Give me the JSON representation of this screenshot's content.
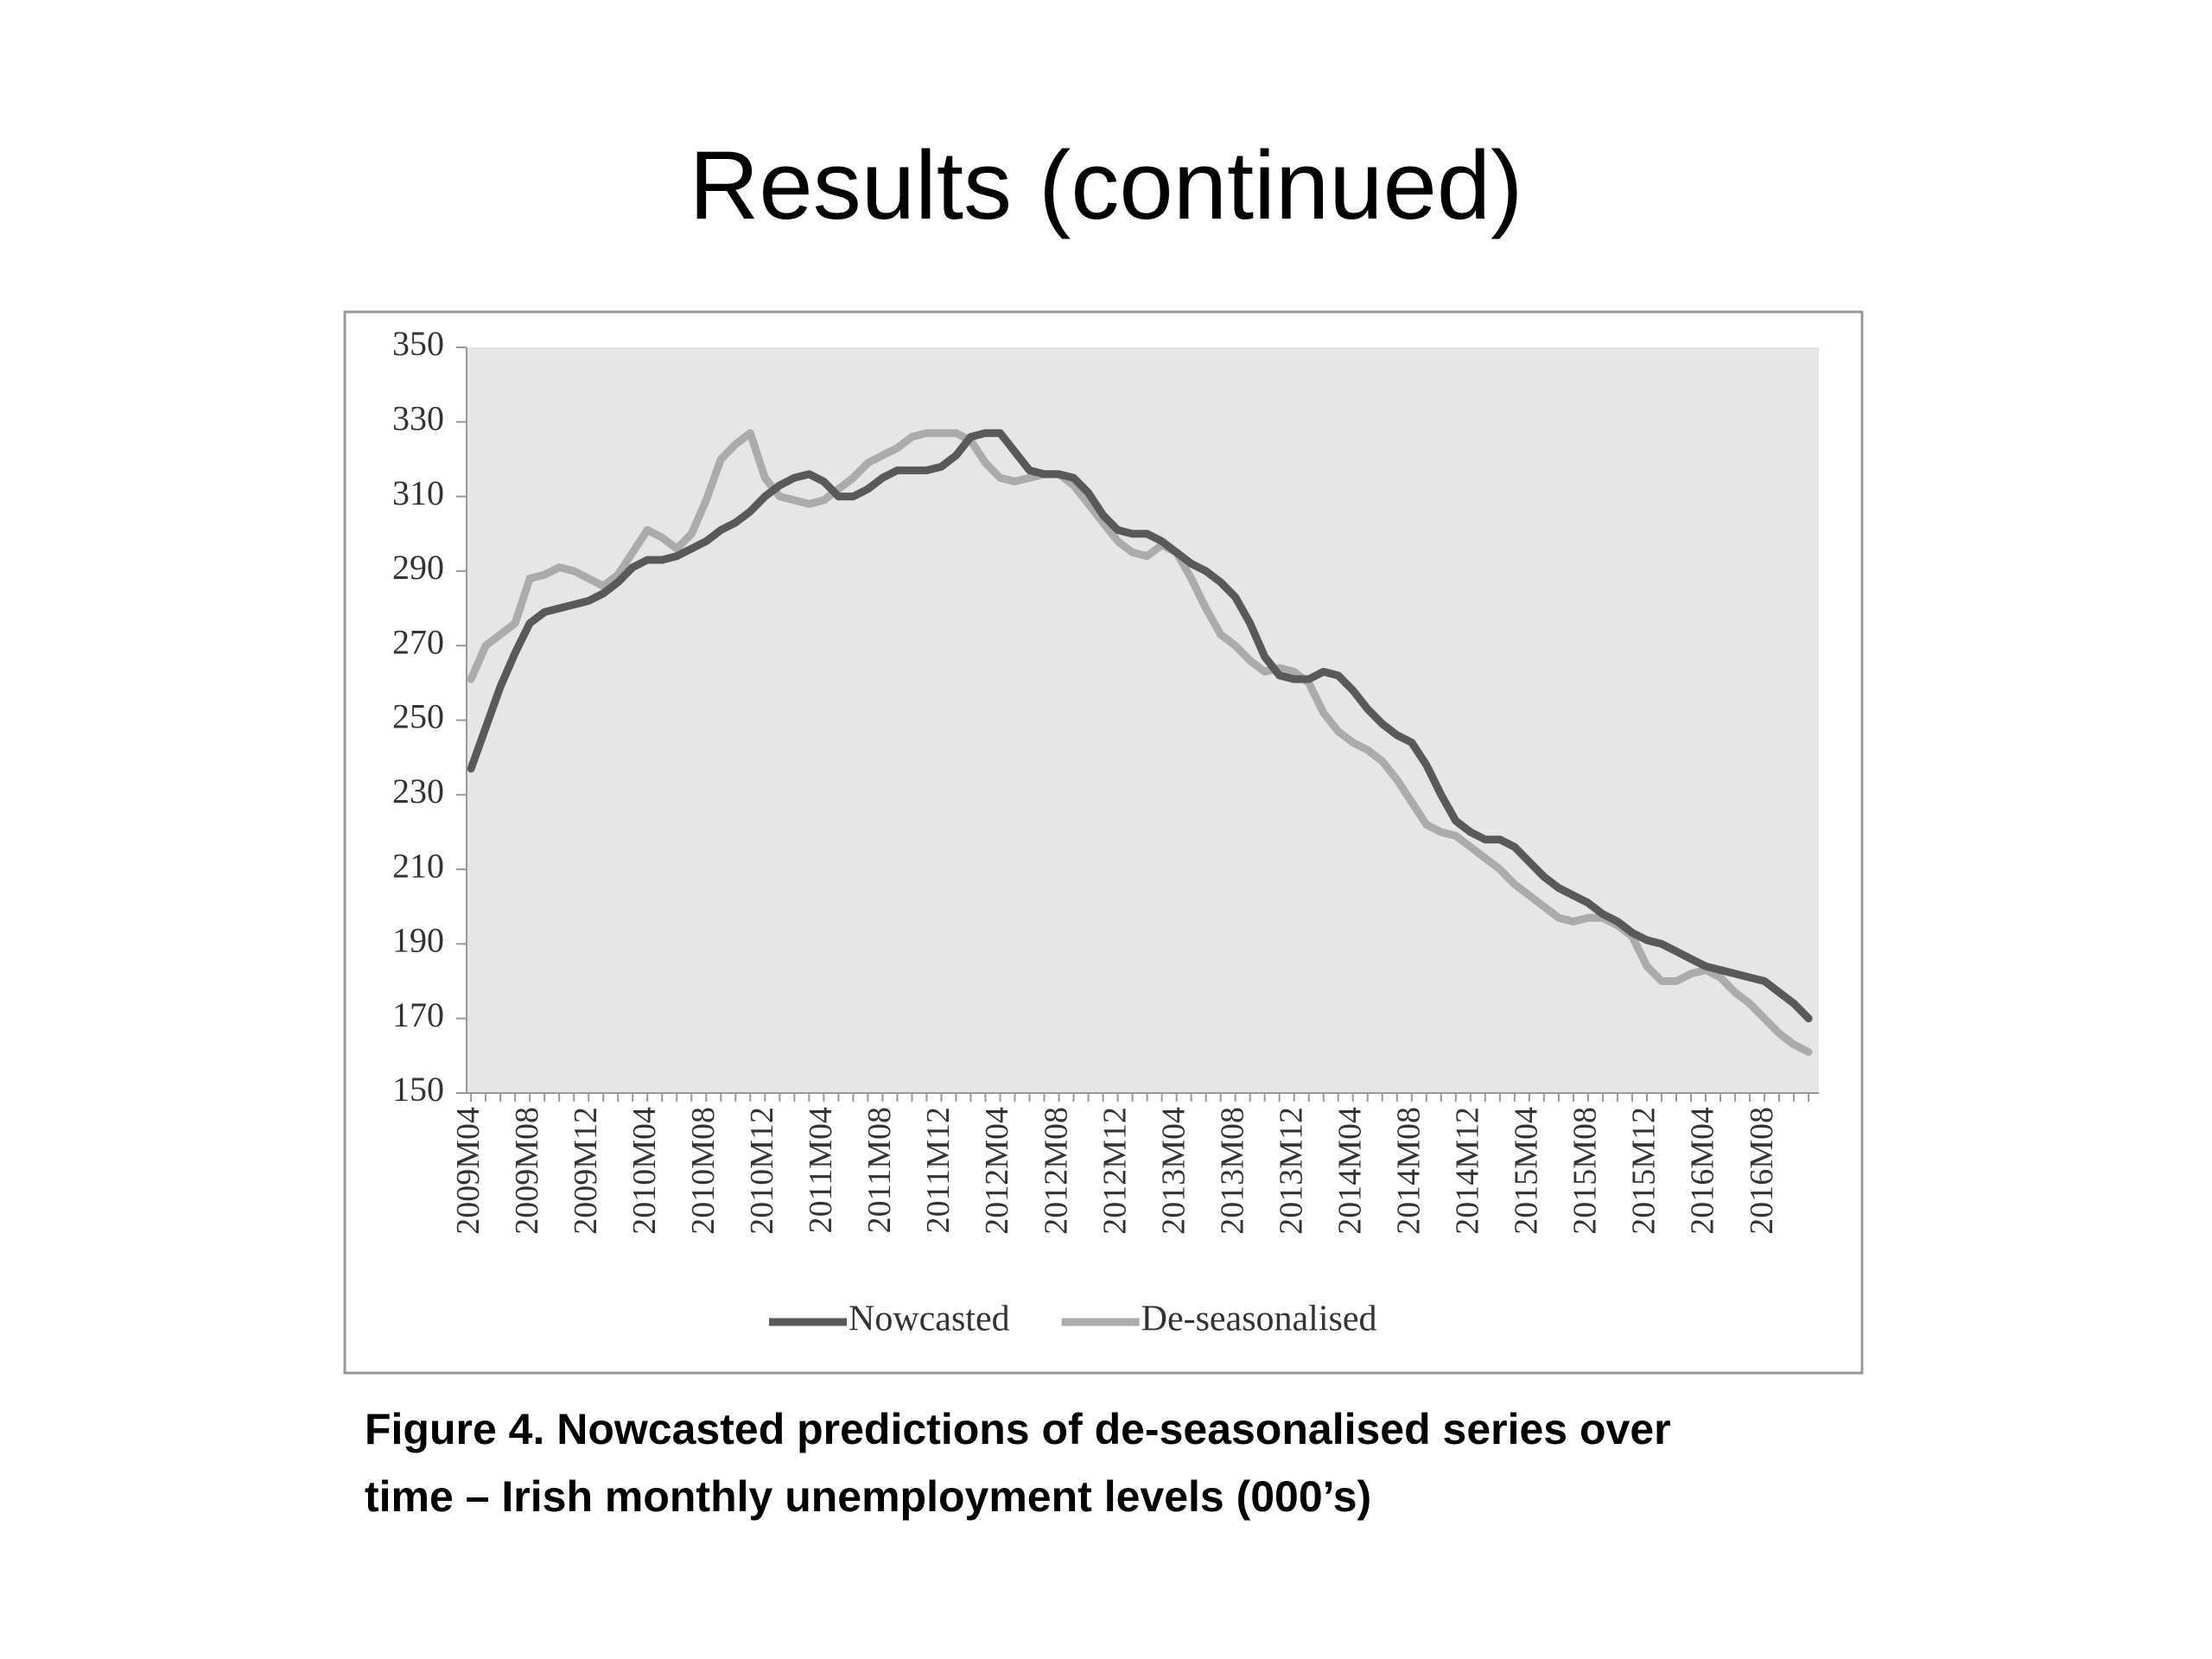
{
  "title": "Results (continued)",
  "caption": [
    "Figure 4. Nowcasted predictions of de-seasonalised series over",
    "time –  Irish monthly unemployment levels (000’s)"
  ],
  "chart_data": {
    "type": "line",
    "categories": [
      "2009M04",
      null,
      null,
      null,
      "2009M08",
      null,
      null,
      null,
      "2009M12",
      null,
      null,
      null,
      "2010M04",
      null,
      null,
      null,
      "2010M08",
      null,
      null,
      null,
      "2010M12",
      null,
      null,
      null,
      "2011M04",
      null,
      null,
      null,
      "2011M08",
      null,
      null,
      null,
      "2011M12",
      null,
      null,
      null,
      "2012M04",
      null,
      null,
      null,
      "2012M08",
      null,
      null,
      null,
      "2012M12",
      null,
      null,
      null,
      "2013M04",
      null,
      null,
      null,
      "2013M08",
      null,
      null,
      null,
      "2013M12",
      null,
      null,
      null,
      "2014M04",
      null,
      null,
      null,
      "2014M08",
      null,
      null,
      null,
      "2014M12",
      null,
      null,
      null,
      "2015M04",
      null,
      null,
      null,
      "2015M08",
      null,
      null,
      null,
      "2015M12",
      null,
      null,
      null,
      "2016M04",
      null,
      null,
      null,
      "2016M08",
      null,
      null,
      null
    ],
    "series": [
      {
        "name": "Nowcasted",
        "color": "#595959",
        "values": [
          237,
          248,
          259,
          268,
          276,
          279,
          280,
          281,
          282,
          284,
          287,
          291,
          293,
          293,
          294,
          296,
          298,
          301,
          303,
          306,
          310,
          313,
          315,
          316,
          314,
          310,
          310,
          312,
          315,
          317,
          317,
          317,
          318,
          321,
          326,
          327,
          327,
          322,
          317,
          316,
          316,
          315,
          311,
          305,
          301,
          300,
          300,
          298,
          295,
          292,
          290,
          287,
          283,
          276,
          267,
          262,
          261,
          261,
          263,
          262,
          258,
          253,
          249,
          246,
          244,
          238,
          230,
          223,
          220,
          218,
          218,
          216,
          212,
          208,
          205,
          203,
          201,
          198,
          196,
          193,
          191,
          190,
          188,
          186,
          184,
          183,
          182,
          181,
          180,
          177,
          174,
          170
        ]
      },
      {
        "name": "De-seasonalised",
        "color": "#ababab",
        "values": [
          261,
          270,
          273,
          276,
          288,
          289,
          291,
          290,
          288,
          286,
          289,
          295,
          301,
          299,
          296,
          300,
          309,
          320,
          324,
          327,
          315,
          310,
          309,
          308,
          309,
          312,
          315,
          319,
          321,
          323,
          326,
          327,
          327,
          327,
          325,
          319,
          315,
          314,
          315,
          316,
          316,
          313,
          308,
          303,
          298,
          295,
          294,
          297,
          295,
          288,
          280,
          273,
          270,
          266,
          263,
          264,
          263,
          260,
          252,
          247,
          244,
          242,
          239,
          234,
          228,
          222,
          220,
          219,
          216,
          213,
          210,
          206,
          203,
          200,
          197,
          196,
          197,
          197,
          195,
          192,
          184,
          180,
          180,
          182,
          183,
          181,
          177,
          174,
          170,
          166,
          163,
          161
        ]
      }
    ],
    "ylim": [
      150,
      350
    ],
    "yticks": [
      150,
      170,
      190,
      210,
      230,
      250,
      270,
      290,
      310,
      330,
      350
    ],
    "legend": "bottom"
  }
}
